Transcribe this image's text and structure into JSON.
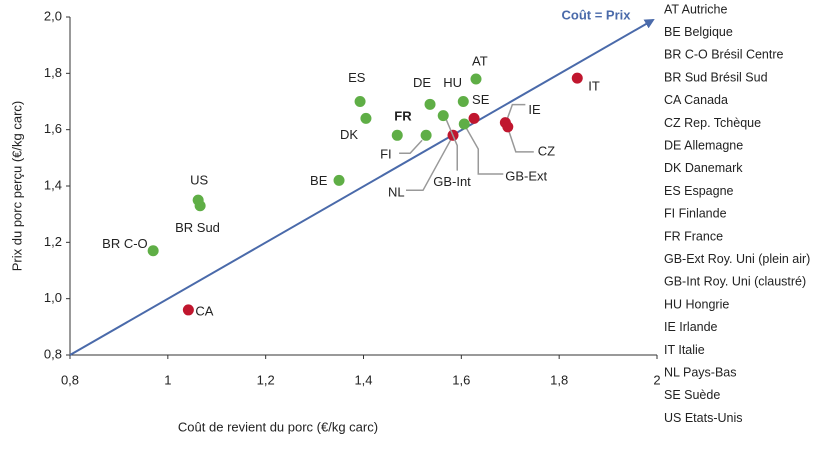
{
  "chart_data": {
    "type": "scatter",
    "x_label": "Coût de revient du porc (€/kg carc)",
    "y_label": "Prix du porc perçu (€/kg carc)",
    "diagonal_label": "Coût = Prix",
    "diagonal_color": "#4a6aaa",
    "xlim": [
      0.8,
      2.0
    ],
    "ylim": [
      0.8,
      2.0
    ],
    "xticks": [
      {
        "value": 0.8,
        "label": "0,8"
      },
      1,
      {
        "value": 1.2,
        "label": "1,2"
      },
      {
        "value": 1.4,
        "label": "1,4"
      },
      {
        "value": 1.6,
        "label": "1,6"
      },
      {
        "value": 1.8,
        "label": "1,8"
      },
      2
    ],
    "yticks": [
      {
        "value": 0.8,
        "label": "0,8"
      },
      {
        "value": 1.0,
        "label": "1,0"
      },
      {
        "value": 1.2,
        "label": "1,2"
      },
      {
        "value": 1.4,
        "label": "1,4"
      },
      {
        "value": 1.6,
        "label": "1,6"
      },
      {
        "value": 1.8,
        "label": "1,8"
      },
      {
        "value": 2.0,
        "label": "2,0"
      }
    ],
    "points": [
      {
        "label": "AT",
        "x": 1.63,
        "y": 1.78,
        "color": "#5fae46"
      },
      {
        "label": "IT",
        "x": 1.837,
        "y": 1.783,
        "color": "#c0162e"
      },
      {
        "label": "ES",
        "x": 1.393,
        "y": 1.7,
        "color": "#5fae46"
      },
      {
        "label": "DE",
        "x": 1.536,
        "y": 1.69,
        "color": "#5fae46"
      },
      {
        "label": "HU",
        "x": 1.604,
        "y": 1.7,
        "color": "#5fae46"
      },
      {
        "label": "DK",
        "x": 1.405,
        "y": 1.64,
        "color": "#5fae46"
      },
      {
        "label": "FR",
        "x": 1.469,
        "y": 1.58,
        "color": "#5fae46"
      },
      {
        "label": "FI",
        "x": 1.528,
        "y": 1.58,
        "color": "#5fae46"
      },
      {
        "label": "NL",
        "x": 1.583,
        "y": 1.58,
        "color": "#c0162e"
      },
      {
        "label": "GB-Int",
        "x": 1.563,
        "y": 1.65,
        "color": "#5fae46"
      },
      {
        "label": "GB-Ext",
        "x": 1.606,
        "y": 1.62,
        "color": "#5fae46"
      },
      {
        "label": "SE",
        "x": 1.626,
        "y": 1.64,
        "color": "#c0162e"
      },
      {
        "label": "IE",
        "x": 1.69,
        "y": 1.625,
        "color": "#c0162e"
      },
      {
        "label": "CZ",
        "x": 1.695,
        "y": 1.61,
        "color": "#c0162e"
      },
      {
        "label": "BE",
        "x": 1.35,
        "y": 1.42,
        "color": "#5fae46"
      },
      {
        "label": "US",
        "x": 1.062,
        "y": 1.35,
        "color": "#5fae46"
      },
      {
        "label": "BR Sud",
        "x": 1.066,
        "y": 1.33,
        "color": "#5fae46"
      },
      {
        "label": "BR C-O",
        "x": 0.97,
        "y": 1.17,
        "color": "#5fae46"
      },
      {
        "label": "CA",
        "x": 1.042,
        "y": 0.96,
        "color": "#c0162e"
      }
    ],
    "legend_items": [
      "AT Autriche",
      "BE Belgique",
      "BR C-O Brésil Centre",
      "BR Sud Brésil Sud",
      "CA Canada",
      "CZ Rep. Tchèque",
      "DE Allemagne",
      "DK Danemark",
      "ES Espagne",
      "FI Finlande",
      "FR France",
      "GB-Ext Roy. Uni (plein air)",
      "GB-Int Roy. Uni  (claustré)",
      "HU Hongrie",
      "IE Irlande",
      "IT Italie",
      "NL Pays-Bas",
      "SE Suède",
      "US Etats-Unis"
    ]
  }
}
